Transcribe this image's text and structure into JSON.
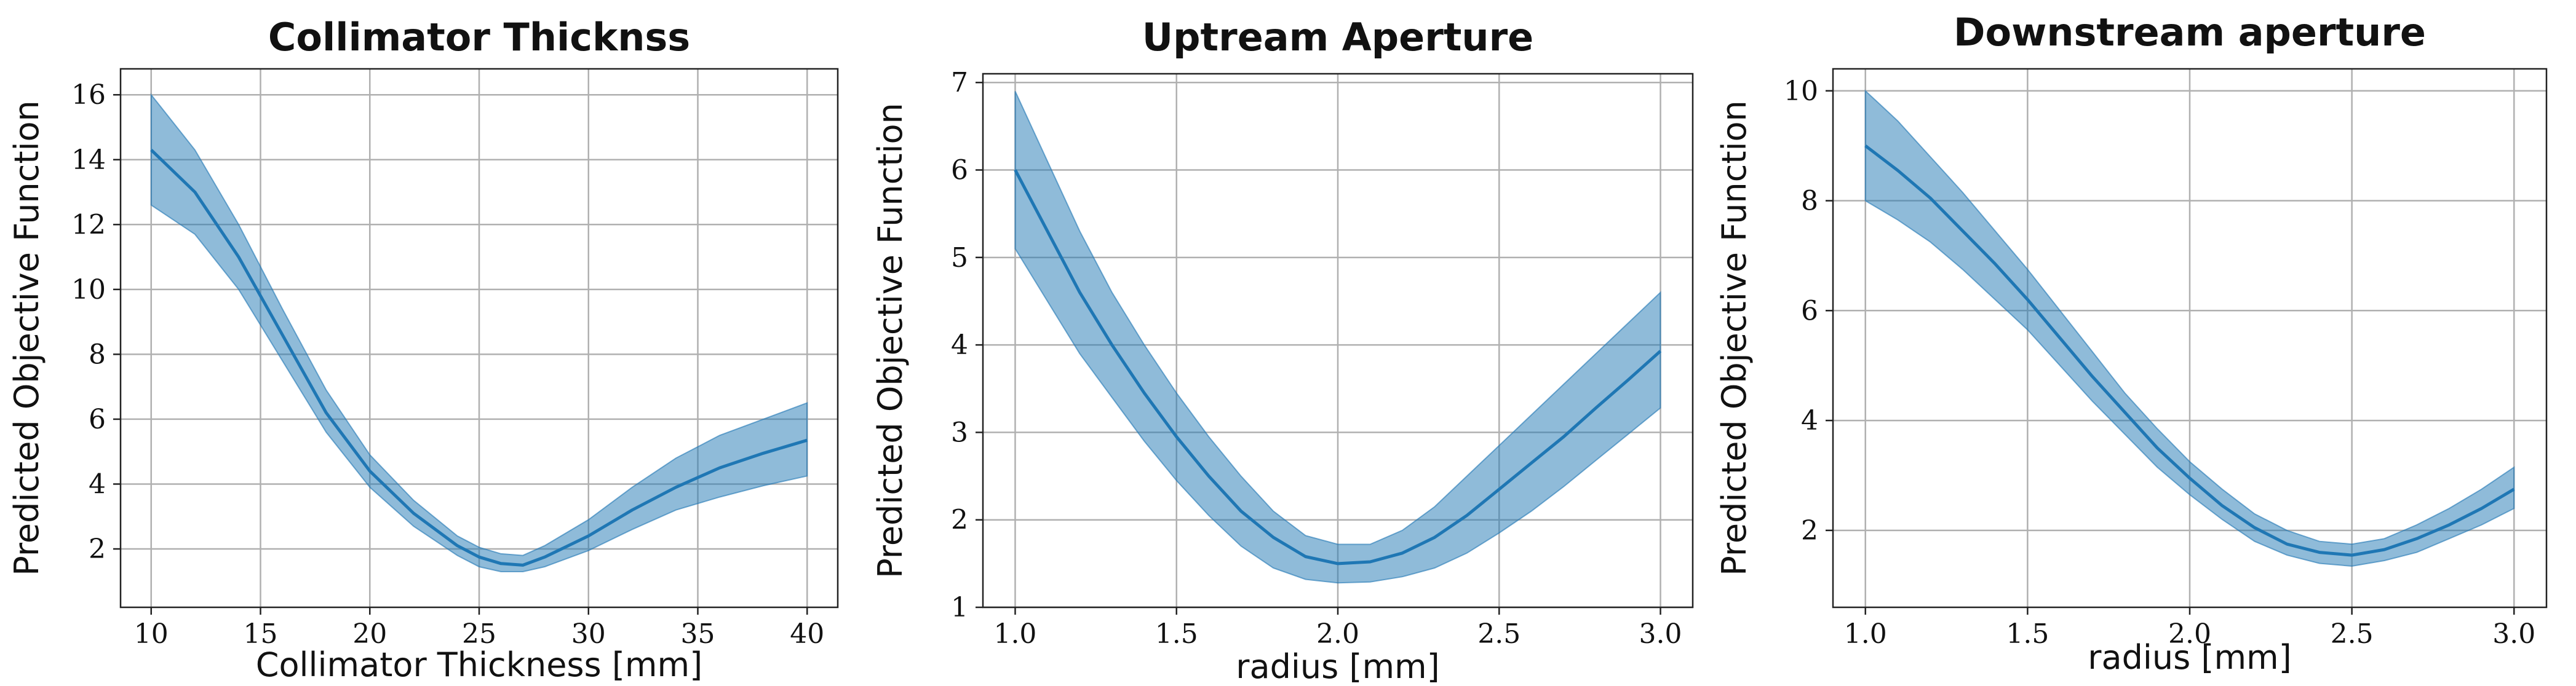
{
  "chart_data": [
    {
      "type": "line",
      "title": "Collimator Thicknss",
      "xlabel": "Collimator Thickness [mm]",
      "ylabel": "Predicted Objective Function",
      "xlim": [
        8.6,
        41.4
      ],
      "ylim": [
        0.2,
        16.8
      ],
      "xticks": [
        10,
        15,
        20,
        25,
        30,
        35,
        40
      ],
      "yticks": [
        2,
        4,
        6,
        8,
        10,
        12,
        14,
        16
      ],
      "grid": true,
      "color": "#1f77b4",
      "x": [
        10,
        12,
        14,
        16,
        18,
        20,
        22,
        24,
        25,
        26,
        27,
        28,
        30,
        32,
        34,
        36,
        38,
        40
      ],
      "mean": [
        14.3,
        13.0,
        11.0,
        8.6,
        6.2,
        4.4,
        3.1,
        2.1,
        1.75,
        1.55,
        1.5,
        1.75,
        2.4,
        3.2,
        3.9,
        4.5,
        4.95,
        5.35
      ],
      "upper": [
        16.0,
        14.3,
        12.0,
        9.4,
        6.9,
        4.9,
        3.5,
        2.4,
        2.05,
        1.85,
        1.8,
        2.1,
        2.9,
        3.9,
        4.8,
        5.5,
        6.0,
        6.5
      ],
      "lower": [
        12.6,
        11.7,
        10.0,
        7.8,
        5.6,
        3.9,
        2.7,
        1.8,
        1.45,
        1.3,
        1.3,
        1.45,
        1.95,
        2.6,
        3.2,
        3.6,
        3.95,
        4.25
      ]
    },
    {
      "type": "line",
      "title": "Uptream Aperture",
      "xlabel": "radius [mm]",
      "ylabel": "Predicted Objective Function",
      "xlim": [
        0.9,
        3.1
      ],
      "ylim": [
        1,
        7.1
      ],
      "xticks": [
        1.0,
        1.5,
        2.0,
        2.5,
        3.0
      ],
      "yticks": [
        1,
        2,
        3,
        4,
        5,
        6,
        7
      ],
      "grid": true,
      "color": "#1f77b4",
      "x": [
        1.0,
        1.1,
        1.2,
        1.3,
        1.4,
        1.5,
        1.6,
        1.7,
        1.8,
        1.9,
        2.0,
        2.1,
        2.2,
        2.3,
        2.4,
        2.5,
        2.6,
        2.7,
        2.8,
        2.9,
        3.0
      ],
      "mean": [
        6.0,
        5.3,
        4.6,
        4.0,
        3.45,
        2.95,
        2.5,
        2.1,
        1.8,
        1.58,
        1.5,
        1.52,
        1.62,
        1.8,
        2.05,
        2.35,
        2.65,
        2.95,
        3.28,
        3.6,
        3.93
      ],
      "upper": [
        6.9,
        6.1,
        5.3,
        4.6,
        4.0,
        3.45,
        2.95,
        2.5,
        2.1,
        1.82,
        1.72,
        1.72,
        1.88,
        2.15,
        2.5,
        2.85,
        3.2,
        3.55,
        3.9,
        4.25,
        4.6
      ],
      "lower": [
        5.1,
        4.5,
        3.9,
        3.4,
        2.9,
        2.45,
        2.05,
        1.7,
        1.45,
        1.32,
        1.28,
        1.29,
        1.35,
        1.45,
        1.62,
        1.85,
        2.1,
        2.38,
        2.68,
        2.98,
        3.28
      ]
    },
    {
      "type": "line",
      "title": "Downstream aperture",
      "xlabel": "radius [mm]",
      "ylabel": "Predicted Objective Function",
      "xlim": [
        0.9,
        3.1
      ],
      "ylim": [
        0.6,
        10.4
      ],
      "xticks": [
        1.0,
        1.5,
        2.0,
        2.5,
        3.0
      ],
      "yticks": [
        2,
        4,
        6,
        8,
        10
      ],
      "grid": true,
      "color": "#1f77b4",
      "x": [
        1.0,
        1.1,
        1.2,
        1.3,
        1.4,
        1.5,
        1.6,
        1.7,
        1.8,
        1.9,
        2.0,
        2.1,
        2.2,
        2.3,
        2.4,
        2.5,
        2.6,
        2.7,
        2.8,
        2.9,
        3.0
      ],
      "mean": [
        9.0,
        8.55,
        8.05,
        7.45,
        6.85,
        6.2,
        5.5,
        4.8,
        4.15,
        3.5,
        2.95,
        2.45,
        2.05,
        1.75,
        1.6,
        1.55,
        1.65,
        1.85,
        2.1,
        2.4,
        2.75
      ],
      "upper": [
        10.0,
        9.45,
        8.8,
        8.15,
        7.45,
        6.75,
        6.0,
        5.25,
        4.5,
        3.85,
        3.25,
        2.75,
        2.3,
        2.0,
        1.8,
        1.75,
        1.85,
        2.1,
        2.4,
        2.75,
        3.15
      ],
      "lower": [
        8.0,
        7.65,
        7.25,
        6.75,
        6.2,
        5.65,
        5.0,
        4.35,
        3.75,
        3.15,
        2.65,
        2.2,
        1.8,
        1.55,
        1.4,
        1.35,
        1.45,
        1.6,
        1.85,
        2.1,
        2.4
      ]
    }
  ]
}
